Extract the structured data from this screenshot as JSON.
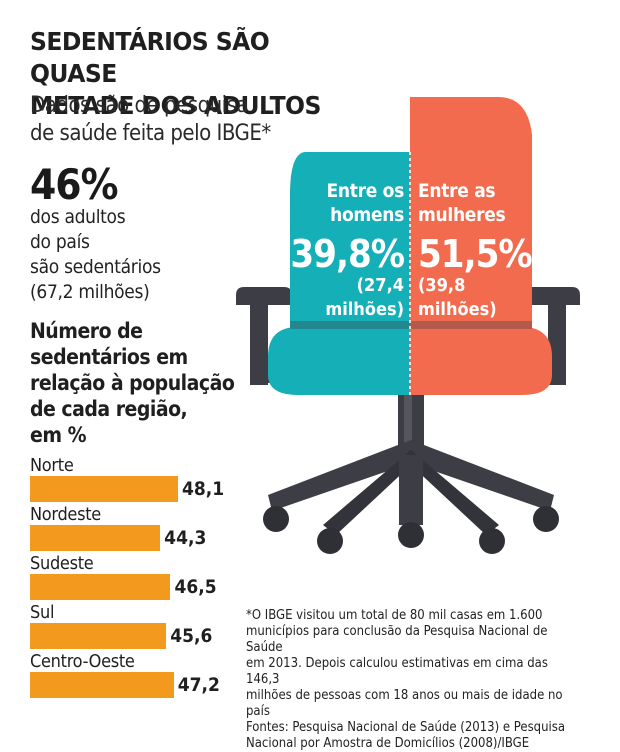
{
  "header": {
    "title_line1": "SEDENTÁRIOS SÃO QUASE",
    "title_line2": "METADE DOS ADULTOS",
    "subtitle_line1": "Dados são de pesquisa",
    "subtitle_line2": "de saúde feita pelo IBGE*"
  },
  "summary": {
    "percent": "46%",
    "line1": "dos adultos",
    "line2": "do país",
    "line3": "são sedentários",
    "line4": "(67,2 milhões)"
  },
  "chair": {
    "men": {
      "label1": "Entre os",
      "label2": "homens",
      "percent": "39,8%",
      "abs1": "(27,4",
      "abs2": "milhões)"
    },
    "women": {
      "label1": "Entre as",
      "label2": "mulheres",
      "percent": "51,5%",
      "abs1": "(39,8",
      "abs2": "milhões)"
    },
    "colors": {
      "men": "#14afb7",
      "women": "#f36b4e",
      "frame": "#3d3d45"
    }
  },
  "chart_data": {
    "type": "bar",
    "title": "Número de sedentários em relação à população de cada região, em %",
    "title_lines": [
      "Número de",
      "sedentários em",
      "relação à população",
      "de cada região,",
      "em %"
    ],
    "categories": [
      "Norte",
      "Nordeste",
      "Sudeste",
      "Sul",
      "Centro-Oeste"
    ],
    "values": [
      48.1,
      44.3,
      46.5,
      45.6,
      47.2
    ],
    "value_labels": [
      "48,1",
      "44,3",
      "46,5",
      "45,6",
      "47,2"
    ],
    "orientation": "horizontal",
    "bar_color": "#f39a1e"
  },
  "footnote": {
    "lines": [
      "*O IBGE visitou um total de 80 mil casas em 1.600",
      "municípios para conclusão da Pesquisa Nacional de Saúde",
      "em 2013. Depois calculou estimativas em cima das 146,3",
      "milhões de pessoas com 18 anos ou mais de idade no país",
      "Fontes: Pesquisa Nacional de Saúde (2013) e Pesquisa",
      "Nacional por Amostra de Domicílios (2008)/IBGE"
    ]
  }
}
